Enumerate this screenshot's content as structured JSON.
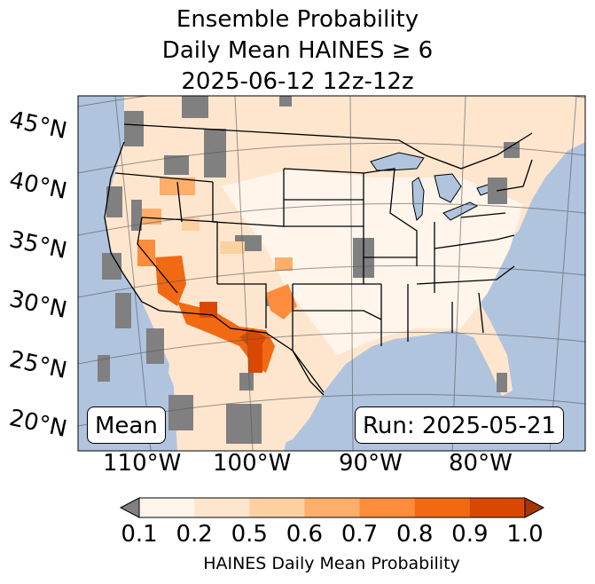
{
  "header": {
    "line1": "Ensemble Probability",
    "line2": "Daily Mean HAINES ≥ 6",
    "line3": "2025-06-12 12z-12z"
  },
  "map": {
    "lat_labels": [
      "45°N",
      "40°N",
      "35°N",
      "30°N",
      "25°N",
      "20°N"
    ],
    "lon_labels": [
      "110°W",
      "100°W",
      "90°W",
      "80°W"
    ],
    "mean_label": "Mean",
    "run_label": "Run: 2025-05-21",
    "colors": {
      "ocean": "#b0c4de",
      "missing": "#808080",
      "bin_0_1": "#fff5eb",
      "bin_0_2": "#fee6ce"
    }
  },
  "colorbar": {
    "ticks": [
      "0.1",
      "0.2",
      "0.5",
      "0.6",
      "0.7",
      "0.8",
      "0.9",
      "1.0"
    ],
    "colors": [
      "#fff5eb",
      "#fee6ce",
      "#fdd0a2",
      "#fdae6b",
      "#fd8d3c",
      "#f16913",
      "#d94801"
    ],
    "under_color": "#808080",
    "over_color": "#a63603",
    "label": "HAINES Daily Mean Probability"
  }
}
